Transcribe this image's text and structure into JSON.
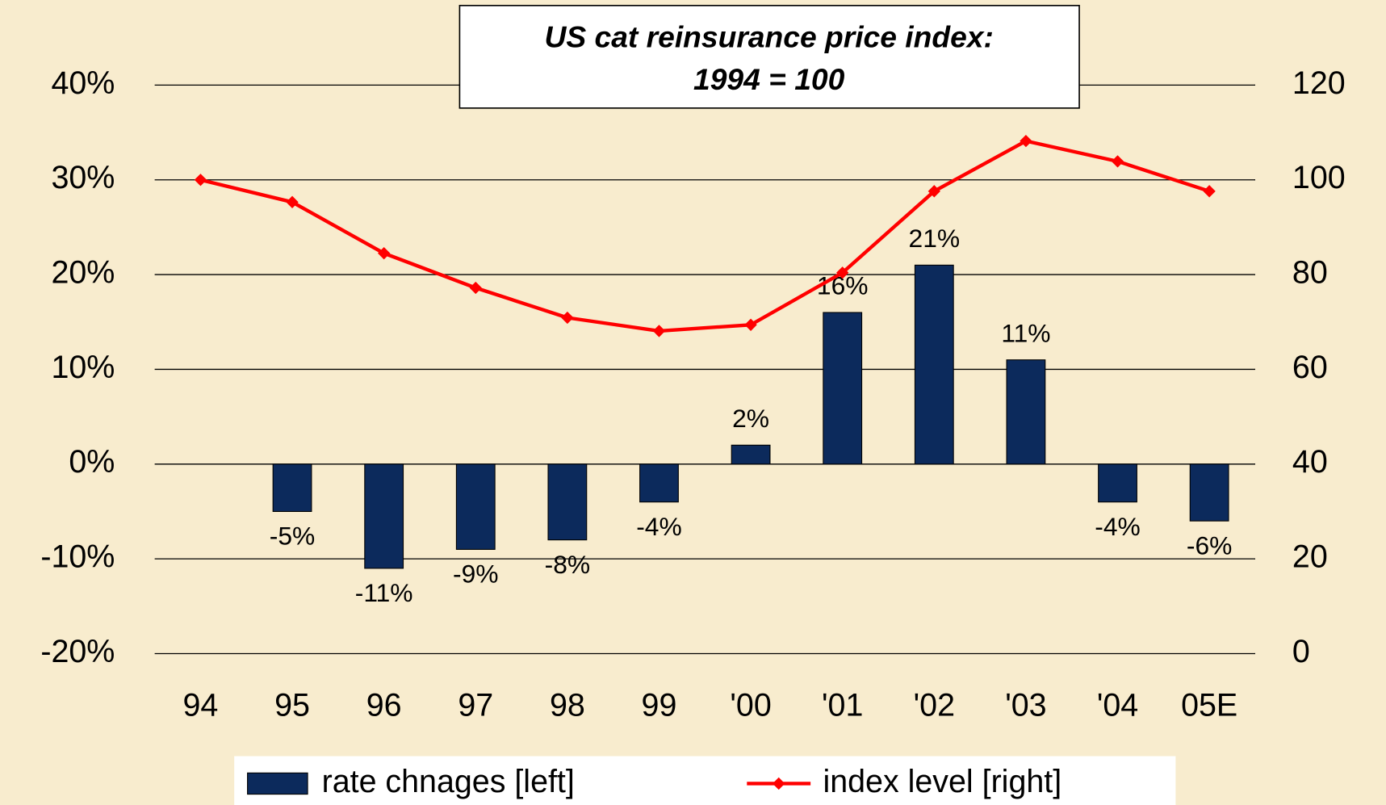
{
  "chart_data": {
    "type": "combo",
    "title": [
      "US cat reinsurance price index:",
      "1994 = 100"
    ],
    "categories": [
      "94",
      "95",
      "96",
      "97",
      "98",
      "99",
      "'00",
      "'01",
      "'02",
      "'03",
      "'04",
      "05E"
    ],
    "series": [
      {
        "name": "rate chnages [left]",
        "type": "bar",
        "color": "#0c2a5c",
        "values": [
          null,
          -5,
          -11,
          -9,
          -8,
          -4,
          2,
          16,
          21,
          11,
          -4,
          -6
        ],
        "value_labels": [
          null,
          "-5%",
          "-11%",
          "-9%",
          "-8%",
          "-4%",
          "2%",
          "16%",
          "21%",
          "11%",
          "-4%",
          "-6%"
        ]
      },
      {
        "name": "index level [right]",
        "type": "line",
        "color": "#ff0000",
        "axis": "y2",
        "values": [
          100,
          95.3,
          84.5,
          77.2,
          70.9,
          68.1,
          69.4,
          80.4,
          97.6,
          108.2,
          103.9,
          97.6
        ]
      }
    ],
    "ylim": [
      -20,
      40
    ],
    "yticks": [
      {
        "value": -20,
        "label": "-20%"
      },
      {
        "value": -10,
        "label": "-10%"
      },
      {
        "value": 0,
        "label": "0%"
      },
      {
        "value": 10,
        "label": "10%"
      },
      {
        "value": 20,
        "label": "20%"
      },
      {
        "value": 30,
        "label": "30%"
      },
      {
        "value": 40,
        "label": "40%"
      }
    ],
    "y2lim": [
      0,
      120
    ],
    "y2ticks": [
      0,
      20,
      40,
      60,
      80,
      100,
      120
    ],
    "grid": true
  }
}
